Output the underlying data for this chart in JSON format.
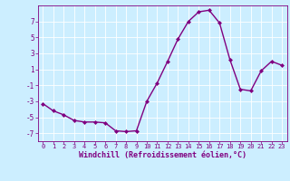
{
  "x": [
    0,
    1,
    2,
    3,
    4,
    5,
    6,
    7,
    8,
    9,
    10,
    11,
    12,
    13,
    14,
    15,
    16,
    17,
    18,
    19,
    20,
    21,
    22,
    23
  ],
  "y": [
    -3.3,
    -4.2,
    -4.7,
    -5.4,
    -5.6,
    -5.6,
    -5.7,
    -6.7,
    -6.8,
    -6.7,
    -3.0,
    -0.7,
    2.0,
    4.8,
    7.0,
    8.2,
    8.4,
    6.8,
    2.2,
    -1.5,
    -1.7,
    0.8,
    2.0,
    1.5
  ],
  "line_color": "#800080",
  "marker": "D",
  "marker_size": 2.0,
  "line_width": 1.0,
  "bg_color": "#cceeff",
  "grid_color": "#ffffff",
  "xlabel": "Windchill (Refroidissement éolien,°C)",
  "xlabel_color": "#800080",
  "tick_color": "#800080",
  "label_color": "#800080",
  "xlim": [
    -0.5,
    23.5
  ],
  "ylim": [
    -8,
    9.0
  ],
  "yticks": [
    -7,
    -5,
    -3,
    -1,
    1,
    3,
    5,
    7
  ],
  "xticks": [
    0,
    1,
    2,
    3,
    4,
    5,
    6,
    7,
    8,
    9,
    10,
    11,
    12,
    13,
    14,
    15,
    16,
    17,
    18,
    19,
    20,
    21,
    22,
    23
  ],
  "xlabel_fontsize": 6.0,
  "tick_fontsize_x": 5.0,
  "tick_fontsize_y": 5.5,
  "spine_color": "#800080"
}
